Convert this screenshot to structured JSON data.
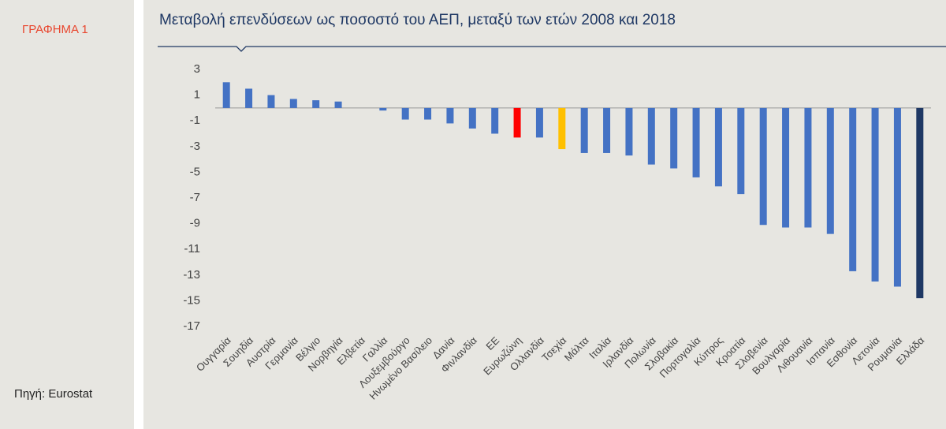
{
  "side": {
    "label": "ΓΡΑΦΗΜΑ 1",
    "source": "Πηγή: Eurostat"
  },
  "chart_data": {
    "type": "bar",
    "title": "Μεταβολή επενδύσεων ως ποσοστό του ΑΕΠ, μεταξύ των ετών 2008 και 2018",
    "categories": [
      "Ουγγαρία",
      "Σουηδία",
      "Αυστρία",
      "Γερμανία",
      "Βέλγιο",
      "Νορβηγία",
      "Ελβετία",
      "Γαλλία",
      "Λουξεμβούργο",
      "Ηνωμένο Βασίλειο",
      "Δανία",
      "Φινλανδία",
      "ΕΕ",
      "Ευρωζώνη",
      "Ολλανδία",
      "Τσεχία",
      "Μάλτα",
      "Ιταλία",
      "Ιρλανδία",
      "Πολωνία",
      "Σλοβακία",
      "Πορτογαλία",
      "Κύπρος",
      "Κροατία",
      "Σλοβενία",
      "Βουλγαρία",
      "Λιθουανία",
      "Ισπανία",
      "Εσθονία",
      "Λετονία",
      "Ρουμανία",
      "Ελλάδα"
    ],
    "values": [
      2.0,
      1.5,
      1.0,
      0.7,
      0.6,
      0.5,
      0,
      -0.2,
      -0.9,
      -0.9,
      -1.2,
      -1.6,
      -2.0,
      -2.3,
      -2.3,
      -3.2,
      -3.5,
      -3.5,
      -3.7,
      -4.4,
      -4.7,
      -5.4,
      -6.1,
      -6.7,
      -9.1,
      -9.3,
      -9.3,
      -9.8,
      -12.7,
      -13.5,
      -13.9,
      -14.8
    ],
    "colors": [
      "#4472c4",
      "#4472c4",
      "#4472c4",
      "#4472c4",
      "#4472c4",
      "#4472c4",
      "#4472c4",
      "#4472c4",
      "#4472c4",
      "#4472c4",
      "#4472c4",
      "#4472c4",
      "#4472c4",
      "#ff0000",
      "#4472c4",
      "#ffc000",
      "#4472c4",
      "#4472c4",
      "#4472c4",
      "#4472c4",
      "#4472c4",
      "#4472c4",
      "#4472c4",
      "#4472c4",
      "#4472c4",
      "#4472c4",
      "#4472c4",
      "#4472c4",
      "#4472c4",
      "#4472c4",
      "#4472c4",
      "#1f3864"
    ],
    "ylim": [
      -17,
      3
    ],
    "yticks": [
      3,
      1,
      -1,
      -3,
      -5,
      -7,
      -9,
      -11,
      -13,
      -15,
      -17
    ],
    "grid": false
  }
}
